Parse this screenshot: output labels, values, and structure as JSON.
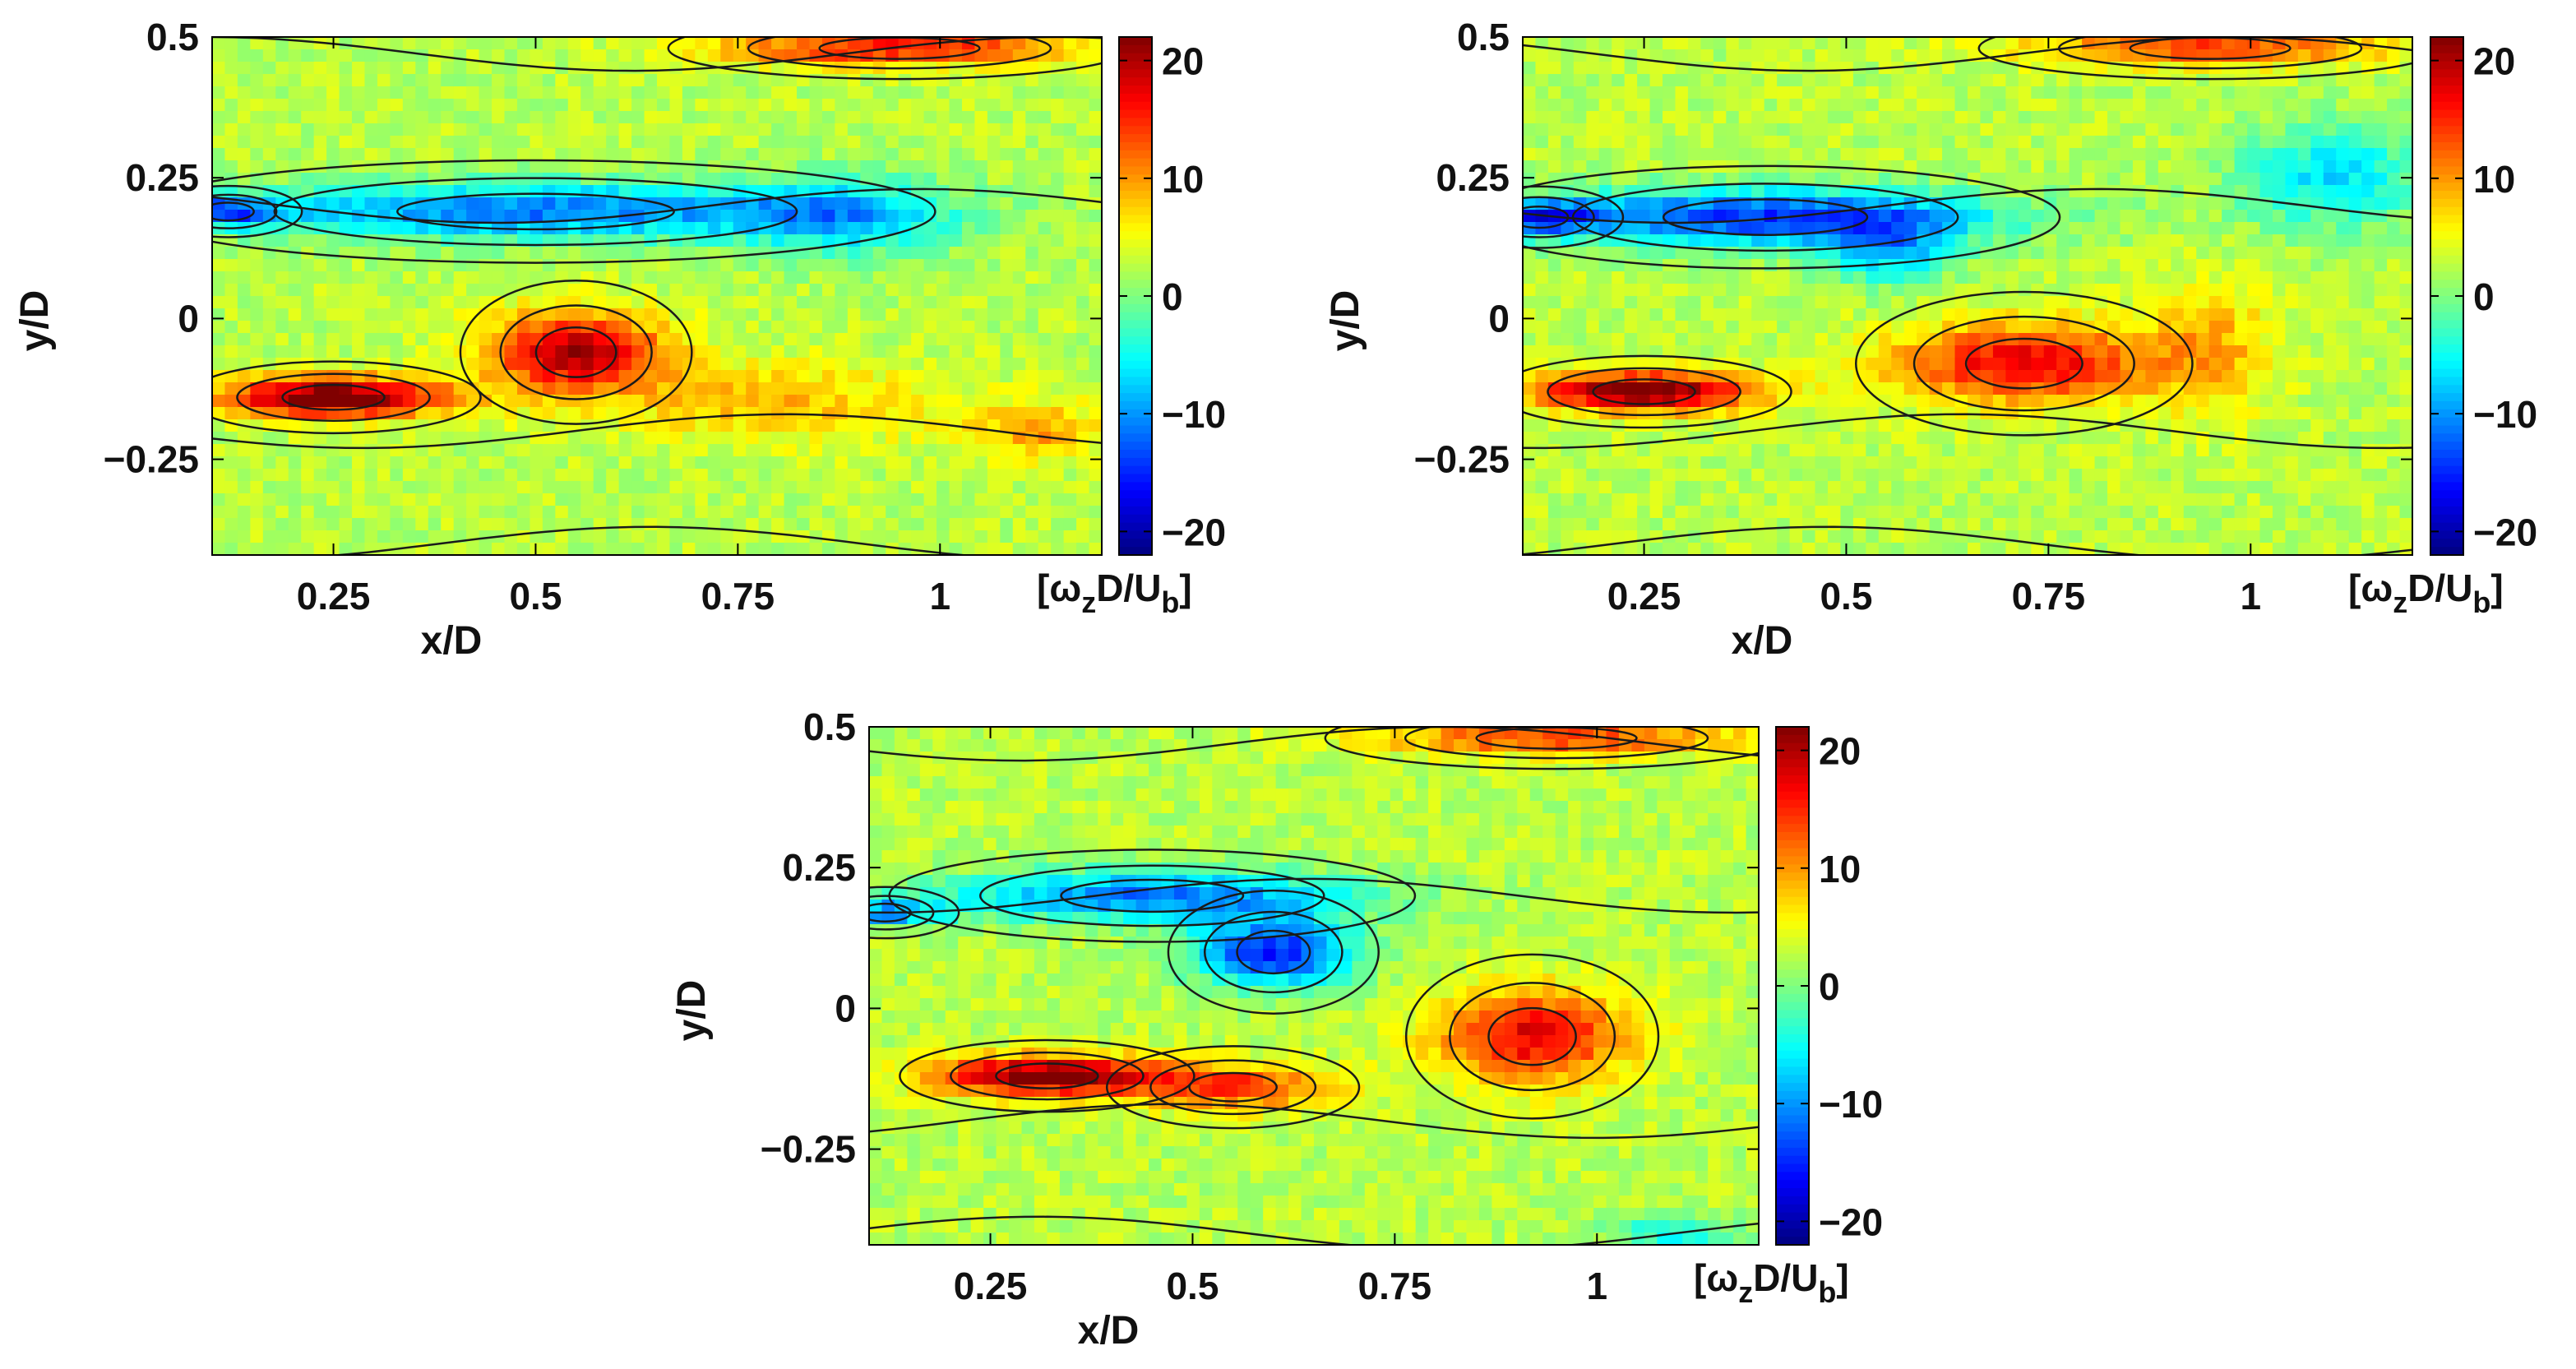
{
  "chart_data": [
    {
      "type": "heatmap",
      "title": "",
      "xlabel": "x/D",
      "ylabel": "y/D",
      "xlim": [
        0.1,
        1.2
      ],
      "ylim": [
        -0.42,
        0.5
      ],
      "x_ticks": [
        0.25,
        0.5,
        0.75,
        1
      ],
      "x_tick_labels": [
        "0.25",
        "0.5",
        "0.75",
        "1"
      ],
      "y_ticks": [
        0.5,
        0.25,
        0,
        -0.25
      ],
      "y_tick_labels": [
        "0.5",
        "0.25",
        "0",
        "−0.25"
      ],
      "colorbar": {
        "label_main": "[ω",
        "label_sub1": "z",
        "label_mid": "D/U",
        "label_sub2": "b",
        "label_end": "]",
        "range": [
          -22,
          22
        ],
        "ticks": [
          20,
          10,
          0,
          -10,
          -20
        ],
        "tick_labels": [
          "20",
          "10",
          "0",
          "−10",
          "−20"
        ],
        "colormap": "jet"
      },
      "vortices": [
        {
          "x": 0.5,
          "y": 0.19,
          "sx": 0.38,
          "sy": 0.05,
          "a": -14
        },
        {
          "x": 0.88,
          "y": 0.18,
          "sx": 0.13,
          "sy": 0.07,
          "a": -9
        },
        {
          "x": 0.12,
          "y": 0.19,
          "sx": 0.07,
          "sy": 0.025,
          "a": -14
        },
        {
          "x": 0.25,
          "y": -0.14,
          "sx": 0.14,
          "sy": 0.035,
          "a": 22
        },
        {
          "x": 0.55,
          "y": -0.06,
          "sx": 0.11,
          "sy": 0.07,
          "a": 18
        },
        {
          "x": 0.8,
          "y": -0.15,
          "sx": 0.2,
          "sy": 0.07,
          "a": 6
        },
        {
          "x": 0.95,
          "y": 0.48,
          "sx": 0.22,
          "sy": 0.03,
          "a": 14
        },
        {
          "x": 1.12,
          "y": -0.2,
          "sx": 0.08,
          "sy": 0.05,
          "a": 7
        }
      ]
    },
    {
      "type": "heatmap",
      "title": "",
      "xlabel": "x/D",
      "ylabel": "y/D",
      "xlim": [
        0.1,
        1.2
      ],
      "ylim": [
        -0.42,
        0.5
      ],
      "x_ticks": [
        0.25,
        0.5,
        0.75,
        1
      ],
      "x_tick_labels": [
        "0.25",
        "0.5",
        "0.75",
        "1"
      ],
      "y_ticks": [
        0.5,
        0.25,
        0,
        -0.25
      ],
      "y_tick_labels": [
        "0.5",
        "0.25",
        "0",
        "−0.25"
      ],
      "colorbar": {
        "label_main": "[ω",
        "label_sub1": "z",
        "label_mid": "D/U",
        "label_sub2": "b",
        "label_end": "]",
        "range": [
          -22,
          22
        ],
        "ticks": [
          20,
          10,
          0,
          -10,
          -20
        ],
        "tick_labels": [
          "20",
          "10",
          "0",
          "−10",
          "−20"
        ],
        "colormap": "jet"
      },
      "vortices": [
        {
          "x": 0.4,
          "y": 0.18,
          "sx": 0.28,
          "sy": 0.05,
          "a": -17
        },
        {
          "x": 0.12,
          "y": 0.18,
          "sx": 0.08,
          "sy": 0.03,
          "a": -14
        },
        {
          "x": 0.55,
          "y": 0.12,
          "sx": 0.08,
          "sy": 0.06,
          "a": -10
        },
        {
          "x": 1.1,
          "y": 0.25,
          "sx": 0.12,
          "sy": 0.09,
          "a": -9
        },
        {
          "x": 0.25,
          "y": -0.13,
          "sx": 0.14,
          "sy": 0.035,
          "a": 21
        },
        {
          "x": 0.72,
          "y": -0.08,
          "sx": 0.16,
          "sy": 0.07,
          "a": 15
        },
        {
          "x": 0.95,
          "y": 0.48,
          "sx": 0.22,
          "sy": 0.03,
          "a": 12
        },
        {
          "x": 0.95,
          "y": -0.05,
          "sx": 0.08,
          "sy": 0.12,
          "a": 6
        }
      ]
    },
    {
      "type": "heatmap",
      "title": "",
      "xlabel": "x/D",
      "ylabel": "y/D",
      "xlim": [
        0.1,
        1.2
      ],
      "ylim": [
        -0.42,
        0.5
      ],
      "x_ticks": [
        0.25,
        0.5,
        0.75,
        1
      ],
      "x_tick_labels": [
        "0.25",
        "0.5",
        "0.75",
        "1"
      ],
      "y_ticks": [
        0.5,
        0.25,
        0,
        -0.25
      ],
      "y_tick_labels": [
        "0.5",
        "0.25",
        "0",
        "−0.25"
      ],
      "colorbar": {
        "label_main": "[ω",
        "label_sub1": "z",
        "label_mid": "D/U",
        "label_sub2": "b",
        "label_end": "]",
        "range": [
          -22,
          22
        ],
        "ticks": [
          20,
          10,
          0,
          -10,
          -20
        ],
        "tick_labels": [
          "20",
          "10",
          "0",
          "−10",
          "−20"
        ],
        "colormap": "jet"
      },
      "vortices": [
        {
          "x": 0.45,
          "y": 0.2,
          "sx": 0.25,
          "sy": 0.045,
          "a": -14
        },
        {
          "x": 0.6,
          "y": 0.1,
          "sx": 0.1,
          "sy": 0.06,
          "a": -18
        },
        {
          "x": 0.12,
          "y": 0.17,
          "sx": 0.07,
          "sy": 0.025,
          "a": -12
        },
        {
          "x": 0.32,
          "y": -0.12,
          "sx": 0.14,
          "sy": 0.035,
          "a": 21
        },
        {
          "x": 0.55,
          "y": -0.14,
          "sx": 0.12,
          "sy": 0.04,
          "a": 12
        },
        {
          "x": 0.92,
          "y": -0.05,
          "sx": 0.12,
          "sy": 0.08,
          "a": 15
        },
        {
          "x": 0.95,
          "y": 0.48,
          "sx": 0.22,
          "sy": 0.03,
          "a": 12
        },
        {
          "x": 1.1,
          "y": -0.4,
          "sx": 0.08,
          "sy": 0.03,
          "a": -8
        }
      ]
    }
  ]
}
